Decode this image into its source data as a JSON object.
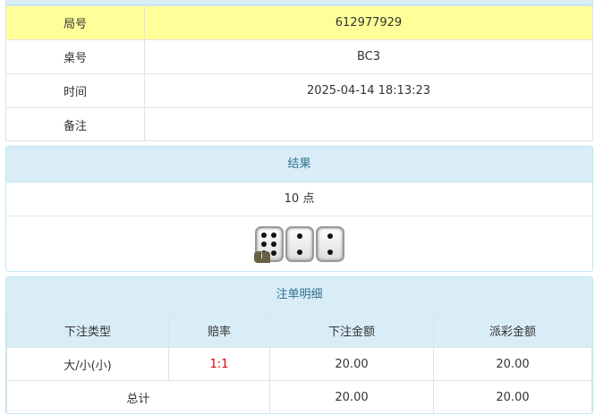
{
  "info": {
    "rows": [
      {
        "label": "局号",
        "value": "612977929"
      },
      {
        "label": "桌号",
        "value": "BC3"
      },
      {
        "label": "时间",
        "value": "2025-04-14 18:13:23"
      },
      {
        "label": "备注",
        "value": ""
      }
    ]
  },
  "result": {
    "title": "结果",
    "points": "10 点",
    "dice": [
      6,
      2,
      2
    ],
    "info_badge": "i"
  },
  "bets": {
    "title": "注单明细",
    "headers": [
      "下注类型",
      "赔率",
      "下注金额",
      "派彩金额"
    ],
    "rows": [
      {
        "type": "大/小(小)",
        "odds": "1:1",
        "amount": "20.00",
        "payout": "20.00"
      }
    ],
    "total": {
      "label": "总计",
      "amount": "20.00",
      "payout": "20.00"
    }
  },
  "colors": {
    "highlight_row": "#ffff99",
    "panel_header": "#d9edf7",
    "odds": "#dd0000"
  }
}
